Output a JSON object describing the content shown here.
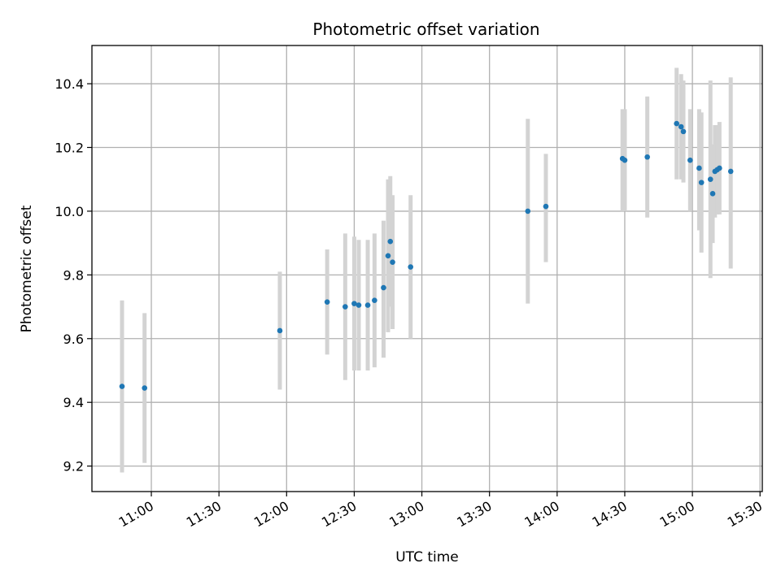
{
  "chart_data": {
    "type": "scatter",
    "title": "Photometric offset variation",
    "xlabel": "UTC time",
    "ylabel": "Photometric offset",
    "x_unit": "UTC time (HH:MM)",
    "xlim": [
      "10:47",
      "15:31"
    ],
    "ylim": [
      9.12,
      10.52
    ],
    "x_ticks": [
      "11:00",
      "11:30",
      "12:00",
      "12:30",
      "13:00",
      "13:30",
      "14:00",
      "14:30",
      "15:00",
      "15:30"
    ],
    "y_ticks": [
      9.2,
      9.4,
      9.6,
      9.8,
      10.0,
      10.2,
      10.4
    ],
    "grid": true,
    "point_color": "#1f77b4",
    "errorbar_color": "#d3d3d3",
    "series": [
      {
        "points": [
          {
            "x": "10:47",
            "y": 9.45,
            "lo": 9.18,
            "hi": 9.72
          },
          {
            "x": "10:57",
            "y": 9.445,
            "lo": 9.21,
            "hi": 9.68
          },
          {
            "x": "11:57",
            "y": 9.625,
            "lo": 9.44,
            "hi": 9.81
          },
          {
            "x": "12:18",
            "y": 9.715,
            "lo": 9.55,
            "hi": 9.88
          },
          {
            "x": "12:26",
            "y": 9.7,
            "lo": 9.47,
            "hi": 9.93
          },
          {
            "x": "12:30",
            "y": 9.71,
            "lo": 9.5,
            "hi": 9.92
          },
          {
            "x": "12:32",
            "y": 9.705,
            "lo": 9.5,
            "hi": 9.91
          },
          {
            "x": "12:36",
            "y": 9.705,
            "lo": 9.5,
            "hi": 9.91
          },
          {
            "x": "12:39",
            "y": 9.72,
            "lo": 9.51,
            "hi": 9.93
          },
          {
            "x": "12:43",
            "y": 9.76,
            "lo": 9.54,
            "hi": 9.97
          },
          {
            "x": "12:45",
            "y": 9.86,
            "lo": 9.62,
            "hi": 10.1
          },
          {
            "x": "12:46",
            "y": 9.905,
            "lo": 9.7,
            "hi": 10.11
          },
          {
            "x": "12:47",
            "y": 9.84,
            "lo": 9.63,
            "hi": 10.05
          },
          {
            "x": "12:55",
            "y": 9.825,
            "lo": 9.6,
            "hi": 10.05
          },
          {
            "x": "13:47",
            "y": 10.0,
            "lo": 9.71,
            "hi": 10.29
          },
          {
            "x": "13:55",
            "y": 10.015,
            "lo": 9.84,
            "hi": 10.18
          },
          {
            "x": "14:29",
            "y": 10.165,
            "lo": 10.0,
            "hi": 10.32
          },
          {
            "x": "14:30",
            "y": 10.16,
            "lo": 10.0,
            "hi": 10.32
          },
          {
            "x": "14:40",
            "y": 10.17,
            "lo": 9.98,
            "hi": 10.36
          },
          {
            "x": "14:53",
            "y": 10.275,
            "lo": 10.1,
            "hi": 10.45
          },
          {
            "x": "14:55",
            "y": 10.265,
            "lo": 10.1,
            "hi": 10.43
          },
          {
            "x": "14:56",
            "y": 10.25,
            "lo": 10.09,
            "hi": 10.41
          },
          {
            "x": "14:59",
            "y": 10.16,
            "lo": 10.0,
            "hi": 10.32
          },
          {
            "x": "15:03",
            "y": 10.135,
            "lo": 9.94,
            "hi": 10.32
          },
          {
            "x": "15:04",
            "y": 10.09,
            "lo": 9.87,
            "hi": 10.31
          },
          {
            "x": "15:08",
            "y": 10.1,
            "lo": 9.79,
            "hi": 10.41
          },
          {
            "x": "15:09",
            "y": 10.055,
            "lo": 9.9,
            "hi": 10.21
          },
          {
            "x": "15:10",
            "y": 10.125,
            "lo": 9.98,
            "hi": 10.27
          },
          {
            "x": "15:11",
            "y": 10.13,
            "lo": 9.99,
            "hi": 10.27
          },
          {
            "x": "15:12",
            "y": 10.135,
            "lo": 9.99,
            "hi": 10.28
          },
          {
            "x": "15:17",
            "y": 10.125,
            "lo": 9.82,
            "hi": 10.42
          }
        ]
      }
    ]
  }
}
